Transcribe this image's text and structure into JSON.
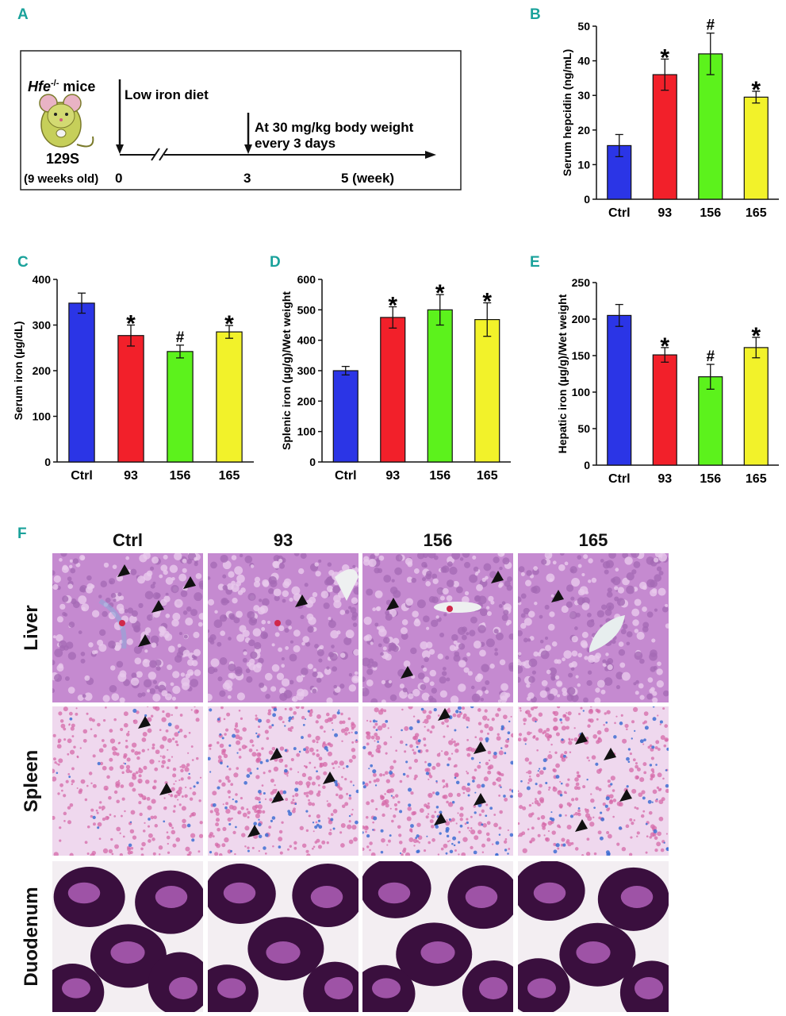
{
  "panel_labels": {
    "a": "A",
    "b": "B",
    "c": "C",
    "d": "D",
    "e": "E",
    "f": "F"
  },
  "schematic": {
    "strain_gene": "Hfe",
    "strain_sup": "-/-",
    "strain_suffix": " mice",
    "strain_name": "129S",
    "age": "(9 weeks old)",
    "diet": "Low iron diet",
    "dose_line1": "At 30 mg/kg body weight",
    "dose_line2": "every 3 days",
    "tick0": "0",
    "tick3": "3",
    "tick5": "5 (week)"
  },
  "colors": {
    "ctrl": "#2b35e6",
    "c93": "#f2202a",
    "c156": "#5cf21c",
    "c165": "#f2f22a",
    "accent": "#1aa29b"
  },
  "chart_data": [
    {
      "id": "B",
      "type": "bar",
      "title": "",
      "categories": [
        "Ctrl",
        "93",
        "156",
        "165"
      ],
      "values": [
        15.5,
        36,
        42,
        29.5
      ],
      "errors": [
        3.2,
        4.5,
        6,
        1.7
      ],
      "markers": [
        "",
        "*",
        "#",
        "*"
      ],
      "ylabel": "Serum hepcidin (ng/mL)",
      "ylim": [
        0,
        50
      ],
      "yticks": [
        0,
        10,
        20,
        30,
        40,
        50
      ]
    },
    {
      "id": "C",
      "type": "bar",
      "title": "",
      "categories": [
        "Ctrl",
        "93",
        "156",
        "165"
      ],
      "values": [
        348,
        277,
        242,
        285
      ],
      "errors": [
        22,
        23,
        14,
        14
      ],
      "markers": [
        "",
        "*",
        "#",
        "*"
      ],
      "ylabel": "Serum iron (µg/dL)",
      "ylim": [
        0,
        400
      ],
      "yticks": [
        0,
        100,
        200,
        300,
        400
      ]
    },
    {
      "id": "D",
      "type": "bar",
      "title": "",
      "categories": [
        "Ctrl",
        "93",
        "156",
        "165"
      ],
      "values": [
        300,
        475,
        500,
        468
      ],
      "errors": [
        14,
        35,
        50,
        55
      ],
      "markers": [
        "",
        "*",
        "*",
        "*"
      ],
      "ylabel": "Splenic  iron (µg/g)/Wet weight",
      "ylim": [
        0,
        600
      ],
      "yticks": [
        0,
        100,
        200,
        300,
        400,
        500,
        600
      ]
    },
    {
      "id": "E",
      "type": "bar",
      "title": "",
      "categories": [
        "Ctrl",
        "93",
        "156",
        "165"
      ],
      "values": [
        205,
        151,
        121,
        161
      ],
      "errors": [
        15,
        10,
        17,
        14
      ],
      "markers": [
        "",
        "*",
        "#",
        "*"
      ],
      "ylabel": "Hepatic  iron (µg/g)/Wet weight",
      "ylim": [
        0,
        250
      ],
      "yticks": [
        0,
        50,
        100,
        150,
        200,
        250
      ]
    }
  ],
  "histology": {
    "columns": [
      "Ctrl",
      "93",
      "156",
      "165"
    ],
    "rows": [
      "Liver",
      "Spleen",
      "Duodenum"
    ]
  }
}
